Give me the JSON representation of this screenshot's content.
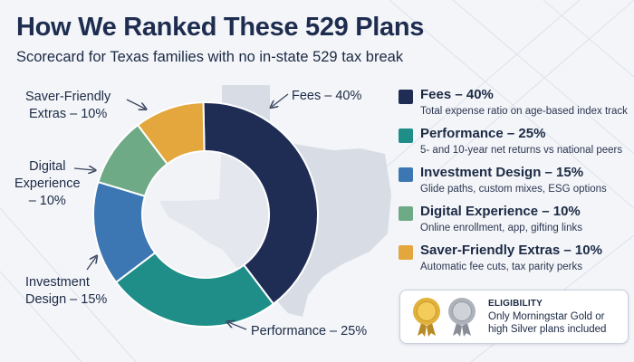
{
  "header": {
    "title": "How We Ranked These 529 Plans",
    "subtitle": "Scorecard for Texas families with no in-state 529 tax break"
  },
  "chart_data": {
    "type": "pie",
    "categories": [
      "Fees",
      "Performance",
      "Investment Design",
      "Digital Experience",
      "Saver-Friendly Extras"
    ],
    "values": [
      40,
      25,
      15,
      10,
      10
    ],
    "unit": "%",
    "colors": [
      "#1f2d55",
      "#1f8e88",
      "#3d77b3",
      "#6faa86",
      "#e3a73e"
    ],
    "callouts": [
      {
        "lines": [
          "Fees – 40%"
        ]
      },
      {
        "lines": [
          "Performance – 25%"
        ]
      },
      {
        "lines": [
          "Investment",
          "Design – 15%"
        ]
      },
      {
        "lines": [
          "Digital",
          "Experience",
          "– 10%"
        ]
      },
      {
        "lines": [
          "Saver-Friendly",
          "Extras – 10%"
        ]
      }
    ],
    "legend": [
      {
        "name": "Fees – 40%",
        "desc": "Total expense ratio on age-based index track"
      },
      {
        "name": "Performance – 25%",
        "desc": "5- and 10-year net returns vs national peers"
      },
      {
        "name": "Investment Design – 15%",
        "desc": "Glide paths, custom mixes, ESG options"
      },
      {
        "name": "Digital Experience – 10%",
        "desc": "Online enrollment, app, gifting links"
      },
      {
        "name": "Saver-Friendly Extras – 10%",
        "desc": "Automatic fee cuts, tax parity perks"
      }
    ]
  },
  "eligibility": {
    "title": "ELIGIBILITY",
    "text": "Only Morningstar Gold or high Silver plans included",
    "medal_colors": {
      "gold": "#e2b13c",
      "silver": "#aeb3bb"
    }
  }
}
